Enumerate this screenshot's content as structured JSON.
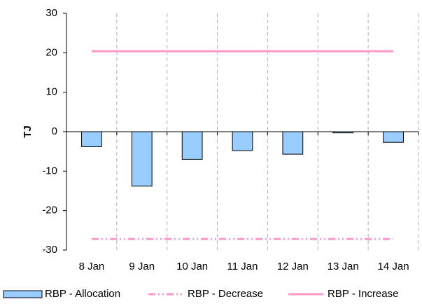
{
  "chart_data": {
    "type": "bar",
    "categories": [
      "8 Jan",
      "9 Jan",
      "10 Jan",
      "11 Jan",
      "12 Jan",
      "13 Jan",
      "14 Jan"
    ],
    "series": [
      {
        "name": "RBP - Allocation",
        "type": "bar",
        "color": "#99ccff",
        "values": [
          -3.8,
          -13.8,
          -7.0,
          -4.8,
          -5.7,
          -0.3,
          -2.7
        ]
      },
      {
        "name": "RBP - Decrease",
        "type": "line",
        "dash": "dash-dot-dot",
        "color": "#ff99cc",
        "values": [
          -27.2,
          -27.2,
          -27.2,
          -27.2,
          -27.2,
          -27.2,
          -27.2
        ]
      },
      {
        "name": "RBP - Increase",
        "type": "line",
        "color": "#ff99cc",
        "values": [
          20.4,
          20.4,
          20.4,
          20.4,
          20.4,
          20.4,
          20.4
        ]
      }
    ],
    "ylabel": "TJ",
    "ylim": [
      -30,
      30
    ],
    "yticks": [
      -30,
      -20,
      -10,
      0,
      10,
      20,
      30
    ],
    "xgrid": true
  }
}
